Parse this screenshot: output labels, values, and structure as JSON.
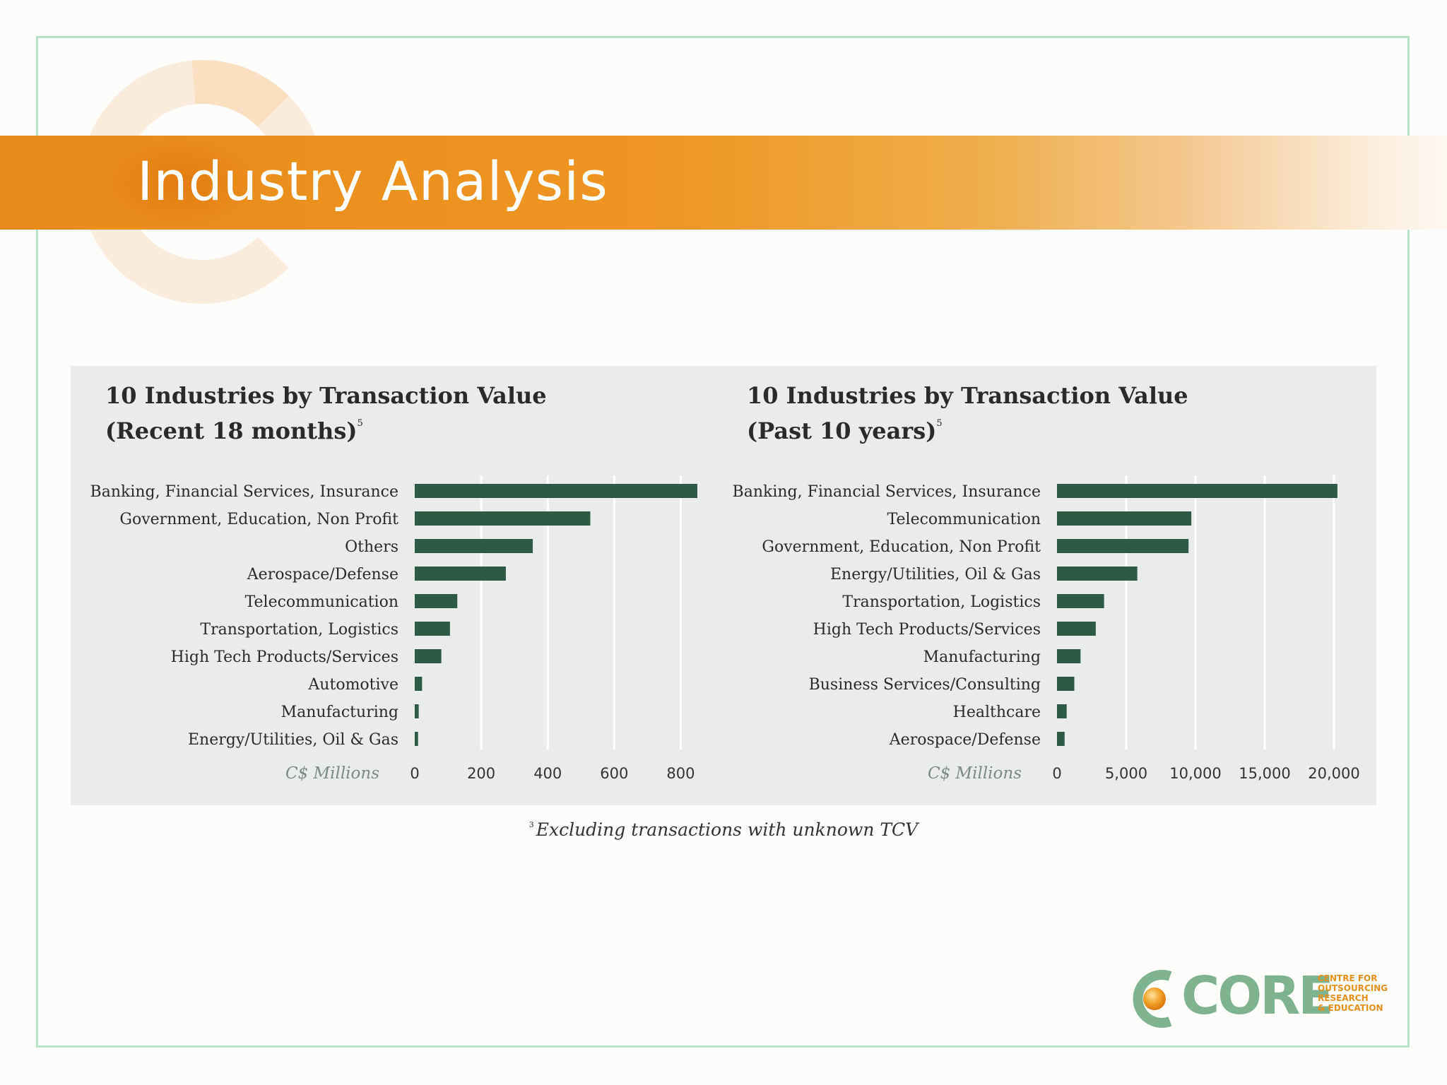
{
  "page": {
    "title": "Industry Analysis",
    "footnote_marker": "3",
    "footnote": "Excluding transactions with unknown TCV",
    "logo": {
      "name": "CORE",
      "sub_lines": [
        "CENTRE FOR",
        "OUTSOURCING",
        "RESEARCH",
        "& EDUCATION"
      ]
    }
  },
  "colors": {
    "bar": "#2e5a45",
    "banner": "#ee9522",
    "panel": "#e9eceb",
    "frame": "#b8e0c5",
    "logo_green": "#7fb38f",
    "logo_orange": "#e5901e"
  },
  "chart_data": [
    {
      "type": "bar",
      "orientation": "horizontal",
      "title_line1": "10 Industries by Transaction Value",
      "title_line2": "(Recent 18 months)",
      "title_superscript": "5",
      "xlabel": "C$ Millions",
      "xlim": [
        0,
        850
      ],
      "xticks": [
        0,
        200,
        400,
        600,
        800
      ],
      "xtick_labels": [
        "0",
        "200",
        "400",
        "600",
        "800"
      ],
      "grid": true,
      "categories": [
        "Banking, Financial Services, Insurance",
        "Government, Education, Non Profit",
        "Others",
        "Aerospace/Defense",
        "Telecommunication",
        "Transportation, Logistics",
        "High Tech Products/Services",
        "Automotive",
        "Manufacturing",
        "Energy/Utilities, Oil & Gas"
      ],
      "values": [
        850,
        528,
        355,
        274,
        128,
        106,
        80,
        22,
        12,
        10
      ]
    },
    {
      "type": "bar",
      "orientation": "horizontal",
      "title_line1": "10 Industries by Transaction Value",
      "title_line2": "(Past 10 years)",
      "title_superscript": "5",
      "xlabel": "C$ Millions",
      "xlim": [
        0,
        20000
      ],
      "xticks": [
        0,
        5000,
        10000,
        15000,
        20000
      ],
      "xtick_labels": [
        "0",
        "5,000",
        "10,000",
        "15,000",
        "20,000"
      ],
      "grid": true,
      "categories": [
        "Banking, Financial Services, Insurance",
        "Telecommunication",
        "Government, Education, Non Profit",
        "Energy/Utilities, Oil & Gas",
        "Transportation, Logistics",
        "High Tech Products/Services",
        "Manufacturing",
        "Business Services/Consulting",
        "Healthcare",
        "Aerospace/Defense"
      ],
      "values": [
        20250,
        9700,
        9500,
        5800,
        3400,
        2800,
        1700,
        1250,
        700,
        550
      ]
    }
  ]
}
